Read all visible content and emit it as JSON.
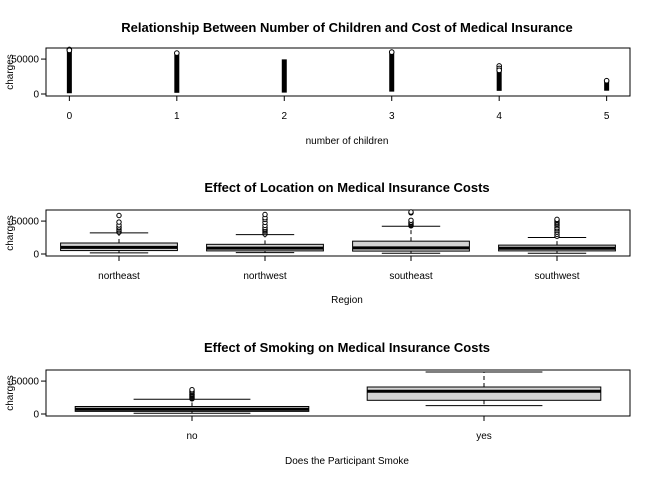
{
  "chart_data": [
    {
      "type": "strip",
      "title": "Relationship Between Number of Children and Cost of Medical Insurance",
      "xlabel": "number of children",
      "ylabel": "charges",
      "ylim": [
        0,
        63000
      ],
      "yticks": [
        0,
        50000
      ],
      "categories": [
        "0",
        "1",
        "2",
        "3",
        "4",
        "5"
      ],
      "ranges": [
        {
          "min": 1100,
          "max": 63800
        },
        {
          "min": 1700,
          "max": 58600
        },
        {
          "min": 2000,
          "max": 49600
        },
        {
          "min": 3400,
          "max": 60000
        },
        {
          "min": 4500,
          "max": 40200
        },
        {
          "min": 4700,
          "max": 19000
        }
      ],
      "outliers": [
        [
          63800,
          62500
        ],
        [
          58600
        ],
        [],
        [
          60000
        ],
        [
          40200,
          36600,
          33900
        ],
        [
          19000
        ]
      ]
    },
    {
      "type": "boxplot",
      "title": "Effect of Location on Medical Insurance Costs",
      "xlabel": "Region",
      "ylabel": "charges",
      "ylim": [
        0,
        63800
      ],
      "yticks": [
        0,
        50000
      ],
      "categories": [
        "northeast",
        "northwest",
        "southeast",
        "southwest"
      ],
      "boxes": [
        {
          "min": 1700,
          "q1": 5200,
          "median": 10100,
          "q3": 16700,
          "max": 32100,
          "outliers": [
            33000,
            35000,
            37000,
            39500,
            41000,
            44000,
            48500,
            58500
          ]
        },
        {
          "min": 2000,
          "q1": 4700,
          "median": 8900,
          "q3": 14700,
          "max": 29400,
          "outliers": [
            30200,
            32500,
            34800,
            36500,
            38000,
            40200,
            43500,
            48000,
            52500,
            55100,
            60000
          ]
        },
        {
          "min": 1100,
          "q1": 4400,
          "median": 9300,
          "q3": 19500,
          "max": 42100,
          "outliers": [
            42800,
            44200,
            45700,
            47300,
            48600,
            51200,
            62600,
            63800
          ]
        },
        {
          "min": 1200,
          "q1": 4700,
          "median": 8800,
          "q3": 13500,
          "max": 25000,
          "outliers": [
            27000,
            30000,
            33000,
            35600,
            38000,
            40000,
            43000,
            45000,
            47000,
            48800,
            51000,
            52600
          ]
        }
      ]
    },
    {
      "type": "boxplot",
      "title": "Effect of Smoking on Medical Insurance Costs",
      "xlabel": "Does the Participant Smoke",
      "ylabel": "charges",
      "ylim": [
        0,
        63800
      ],
      "yticks": [
        0,
        50000
      ],
      "categories": [
        "no",
        "yes"
      ],
      "boxes": [
        {
          "min": 1100,
          "q1": 4000,
          "median": 7300,
          "q3": 11400,
          "max": 22500,
          "outliers": [
            23000,
            24500,
            26000,
            27500,
            29000,
            30200,
            32000,
            33500,
            35000,
            36900
          ]
        },
        {
          "min": 12800,
          "q1": 20800,
          "median": 34500,
          "q3": 41000,
          "max": 63800,
          "outliers": []
        }
      ]
    }
  ]
}
